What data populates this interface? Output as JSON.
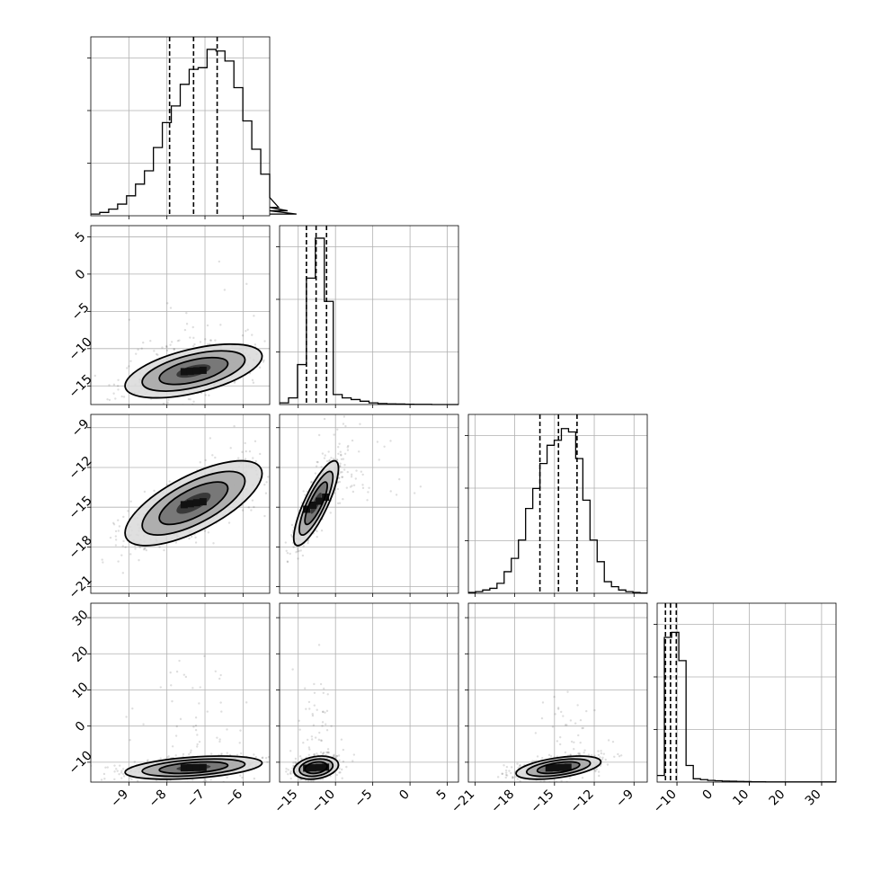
{
  "chart_data": {
    "type": "corner",
    "title": "",
    "n_params": 4,
    "params": [
      {
        "range": [
          -10,
          -5.3
        ],
        "ticks": [
          -9,
          -8,
          -7,
          -6
        ],
        "tick_labels": [
          "−9",
          "−8",
          "−7",
          "−6"
        ],
        "hist": {
          "edges_start": -10,
          "bin_width": 0.235,
          "counts": [
            0.01,
            0.02,
            0.04,
            0.07,
            0.12,
            0.19,
            0.27,
            0.41,
            0.56,
            0.66,
            0.79,
            0.88,
            0.89,
            1.0,
            0.99,
            0.93,
            0.77,
            0.57,
            0.4,
            0.25,
            0.11,
            0.05,
            0.03,
            0.01
          ]
        },
        "quantiles": [
          -7.93,
          -7.3,
          -6.68
        ]
      },
      {
        "range": [
          -17.5,
          6.5
        ],
        "ticks": [
          -15,
          -10,
          -5,
          0,
          5
        ],
        "tick_labels": [
          "−15",
          "−10",
          "−5",
          "0",
          "5"
        ],
        "hist": {
          "edges_start": -17.5,
          "bin_width": 1.2,
          "counts": [
            0.01,
            0.04,
            0.24,
            0.76,
            1.0,
            0.62,
            0.06,
            0.04,
            0.03,
            0.02,
            0.01,
            0.006,
            0.004,
            0.003,
            0.002,
            0.001,
            0.001,
            0.0,
            0.0,
            0.0
          ]
        },
        "quantiles": [
          -13.9,
          -12.6,
          -11.2
        ]
      },
      {
        "range": [
          -21.5,
          -8
        ],
        "ticks": [
          -21,
          -18,
          -15,
          -12,
          -9
        ],
        "tick_labels": [
          "−21",
          "−18",
          "−15",
          "−12",
          "−9"
        ],
        "hist": {
          "edges_start": -21.5,
          "bin_width": 0.54,
          "counts": [
            0.005,
            0.01,
            0.02,
            0.03,
            0.06,
            0.13,
            0.21,
            0.32,
            0.51,
            0.63,
            0.78,
            0.89,
            0.92,
            0.99,
            0.97,
            0.81,
            0.56,
            0.32,
            0.19,
            0.07,
            0.04,
            0.02,
            0.01,
            0.005,
            0.002
          ]
        },
        "quantiles": [
          -16.1,
          -14.7,
          -13.3
        ]
      },
      {
        "range": [
          -15.5,
          34
        ],
        "ticks": [
          -10,
          0,
          10,
          20,
          30
        ],
        "tick_labels": [
          "−10",
          "0",
          "10",
          "20",
          "30"
        ],
        "hist": {
          "edges_start": -15.5,
          "bin_width": 2.0,
          "counts": [
            0.04,
            0.87,
            0.9,
            0.73,
            0.1,
            0.02,
            0.015,
            0.01,
            0.008,
            0.006,
            0.005,
            0.004,
            0.003,
            0.002,
            0.002,
            0.001,
            0.001,
            0.001,
            0.001,
            0.001,
            0.001,
            0.001,
            0.001,
            0.001,
            0.001
          ]
        },
        "quantiles": [
          -13.2,
          -11.8,
          -10.2
        ]
      }
    ],
    "pairs": [
      {
        "x": 0,
        "y": 1,
        "mean": [
          -7.3,
          -13.0
        ],
        "sd": [
          0.9,
          1.8
        ],
        "rho": 0.55,
        "tail": [
          0.08,
          0.0,
          6.0
        ]
      },
      {
        "x": 0,
        "y": 2,
        "mean": [
          -7.3,
          -14.7
        ],
        "sd": [
          0.9,
          1.6
        ],
        "rho": 0.7,
        "tail": [
          0.0,
          0.0,
          0.0
        ]
      },
      {
        "x": 1,
        "y": 2,
        "mean": [
          -12.6,
          -14.7
        ],
        "sd": [
          1.5,
          1.6
        ],
        "rho": 0.82,
        "tail": [
          0.12,
          6.0,
          3.0
        ]
      },
      {
        "x": 0,
        "y": 3,
        "mean": [
          -7.3,
          -11.5
        ],
        "sd": [
          0.9,
          1.6
        ],
        "rho": 0.4,
        "tail": [
          0.08,
          0.0,
          14.0
        ]
      },
      {
        "x": 1,
        "y": 3,
        "mean": [
          -12.6,
          -11.5
        ],
        "sd": [
          1.5,
          1.6
        ],
        "rho": 0.25,
        "tail": [
          0.1,
          0.5,
          14.0
        ]
      },
      {
        "x": 2,
        "y": 3,
        "mean": [
          -14.7,
          -11.5
        ],
        "sd": [
          1.6,
          1.6
        ],
        "rho": 0.5,
        "tail": [
          0.08,
          1.0,
          12.0
        ]
      }
    ],
    "contour_levels_sigma": [
      0.5,
      1.0,
      1.5,
      2.0
    ],
    "grid": true
  }
}
